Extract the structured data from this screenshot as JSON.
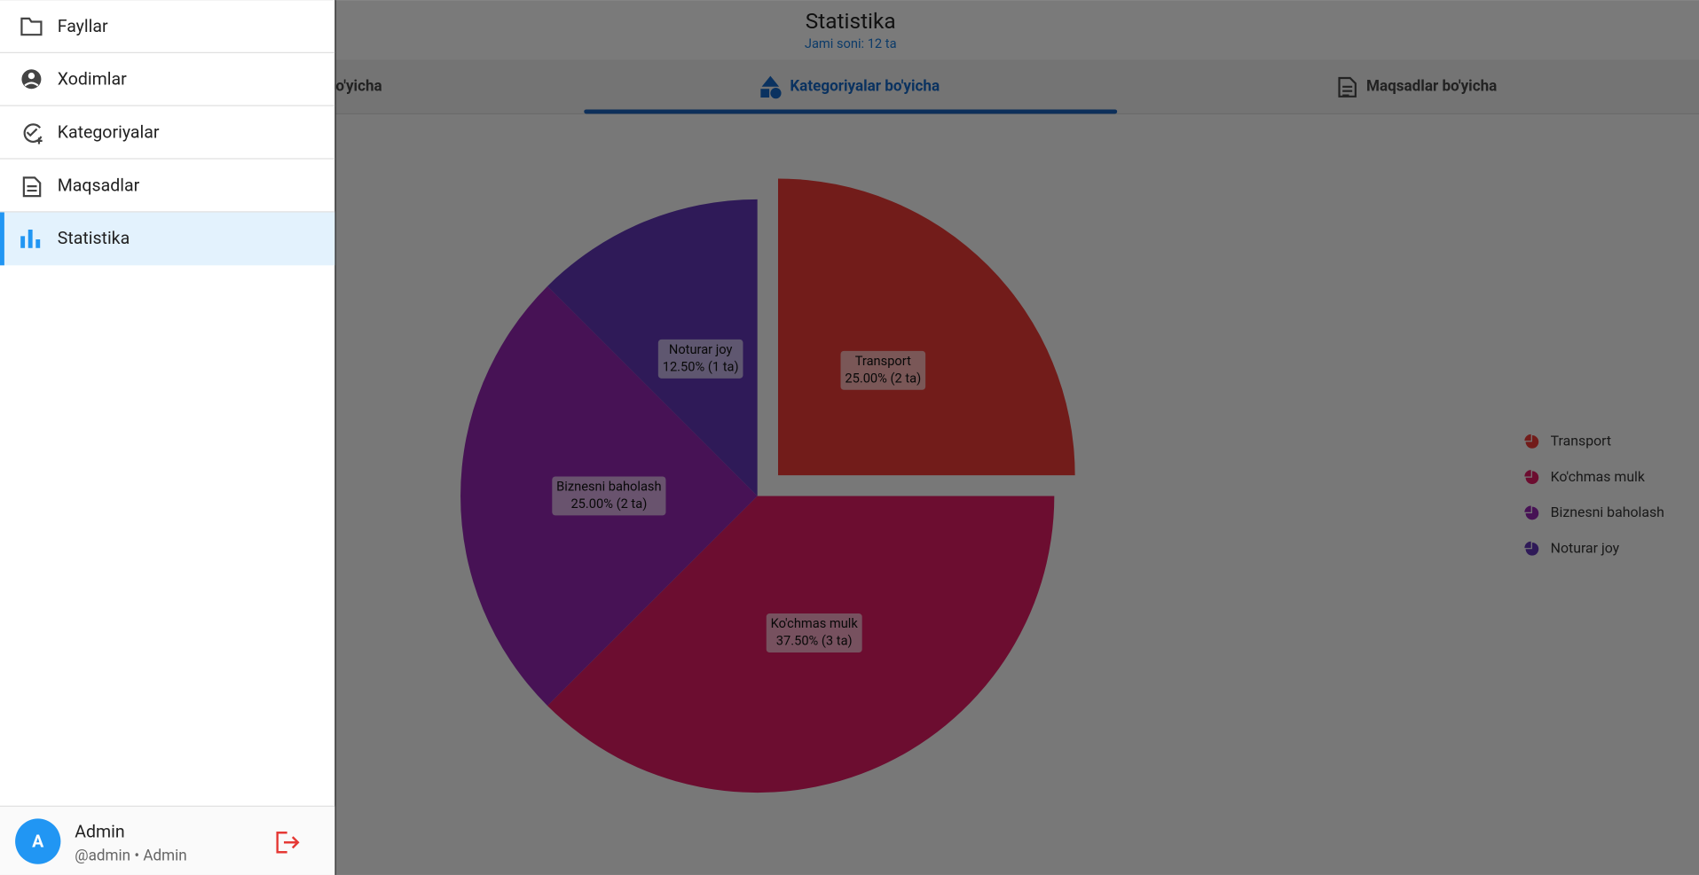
{
  "drawer": {
    "items": [
      {
        "label": "Fayllar"
      },
      {
        "label": "Xodimlar"
      },
      {
        "label": "Kategoriyalar"
      },
      {
        "label": "Maqsadlar"
      },
      {
        "label": "Statistika",
        "active": true
      }
    ],
    "user": {
      "avatar": "A",
      "name": "Admin",
      "subtitle": "@admin • Admin"
    }
  },
  "header": {
    "title": "Statistika",
    "subtitle": "Jami soni: 12 ta"
  },
  "tabs": [
    {
      "label": "bo'yicha"
    },
    {
      "label": "Kategoriyalar bo'yicha",
      "active": true
    },
    {
      "label": "Maqsadlar bo'yicha"
    }
  ],
  "chart_data": {
    "type": "pie",
    "categories": [
      "Transport",
      "Ko'chmas mulk",
      "Biznesni baholash",
      "Noturar joy"
    ],
    "values": [
      25,
      37.5,
      25,
      12.5
    ],
    "value_labels": [
      "25.00% (2 ta)",
      "37.50% (3 ta)",
      "25.00% (2 ta)",
      "12.50% (1 ta)"
    ],
    "colors": [
      "#e53935",
      "#d81b60",
      "#8e24aa",
      "#5e35b1"
    ],
    "explode": [
      true,
      false,
      false,
      false
    ],
    "legend": "right"
  }
}
